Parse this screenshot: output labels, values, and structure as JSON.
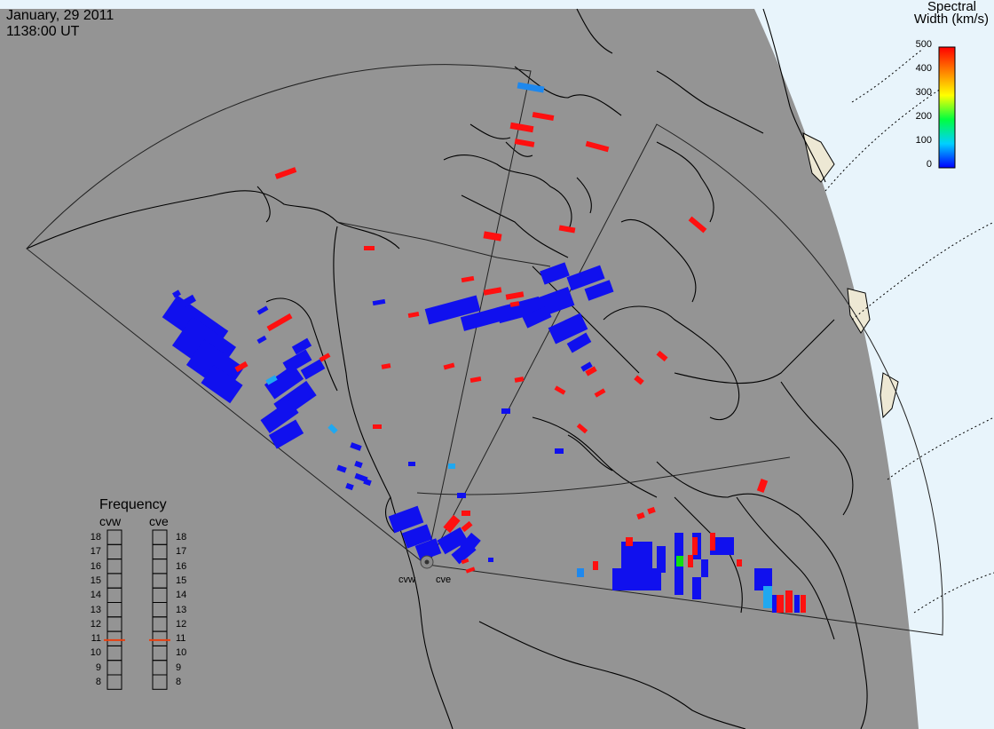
{
  "header": {
    "date": "January, 29 2011",
    "time": "1138:00 UT"
  },
  "colorbar": {
    "title_line1": "Spectral",
    "title_line2": "Width (km/s)",
    "ticks": [
      "500",
      "400",
      "300",
      "200",
      "100",
      "0"
    ],
    "colors": [
      "#ff0000",
      "#ff8000",
      "#ffff00",
      "#00ff00",
      "#00ffff",
      "#0000ff"
    ]
  },
  "frequency_panel": {
    "title": "Frequency",
    "radars": [
      "cvw",
      "cve"
    ],
    "ticks": [
      "18",
      "17",
      "16",
      "15",
      "14",
      "13",
      "12",
      "11",
      "10",
      "9",
      "8"
    ],
    "cvw_freq_mhz": 10.9,
    "cve_freq_mhz": 10.9
  },
  "radar_labels": {
    "cvw": "cvw",
    "cve": "cve"
  },
  "colors": {
    "land_ocean": "#949494",
    "sunlit": "#e8f4fb",
    "coast": "#000000",
    "echo_low": "#1010ee",
    "echo_high": "#ff1010",
    "echo_mid_cyan": "#20a8f0",
    "echo_green": "#10e010"
  }
}
